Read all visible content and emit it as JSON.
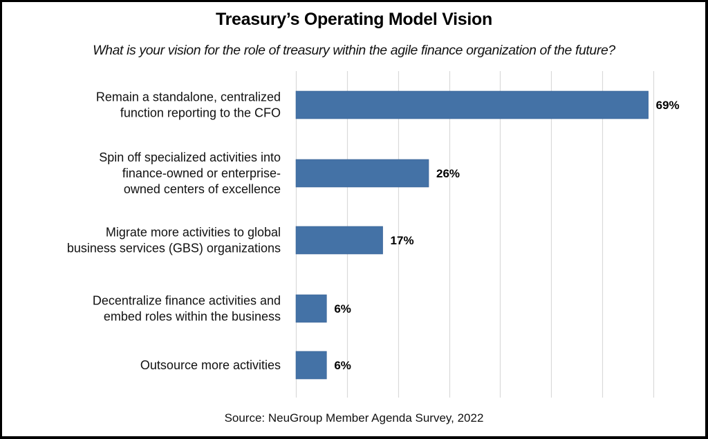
{
  "chart_data": {
    "type": "bar",
    "orientation": "horizontal",
    "title": "Treasury’s Operating Model Vision",
    "subtitle": "What is your vision for the role of treasury within the agile finance organization of the future?",
    "categories": [
      [
        "Remain a standalone, centralized",
        "function reporting to the CFO"
      ],
      [
        "Spin  off specialized activities into",
        "finance-owned or enterprise-",
        "owned centers of excellence"
      ],
      [
        "Migrate more activities to global",
        "business services (GBS) organizations"
      ],
      [
        "Decentralize finance activities and",
        "embed roles within the business"
      ],
      [
        "Outsource more activities"
      ]
    ],
    "values": [
      69,
      26,
      17,
      6,
      6
    ],
    "value_labels": [
      "69%",
      "26%",
      "17%",
      "6%",
      "6%"
    ],
    "xlabel": "",
    "ylabel": "",
    "xlim": [
      0,
      70
    ],
    "grid_ticks": [
      0,
      10,
      20,
      30,
      40,
      50,
      60,
      70
    ],
    "grid": true,
    "legend": "none",
    "bar_color": "#4472A6",
    "source": "Source: NeuGroup Member Agenda Survey, 2022"
  }
}
